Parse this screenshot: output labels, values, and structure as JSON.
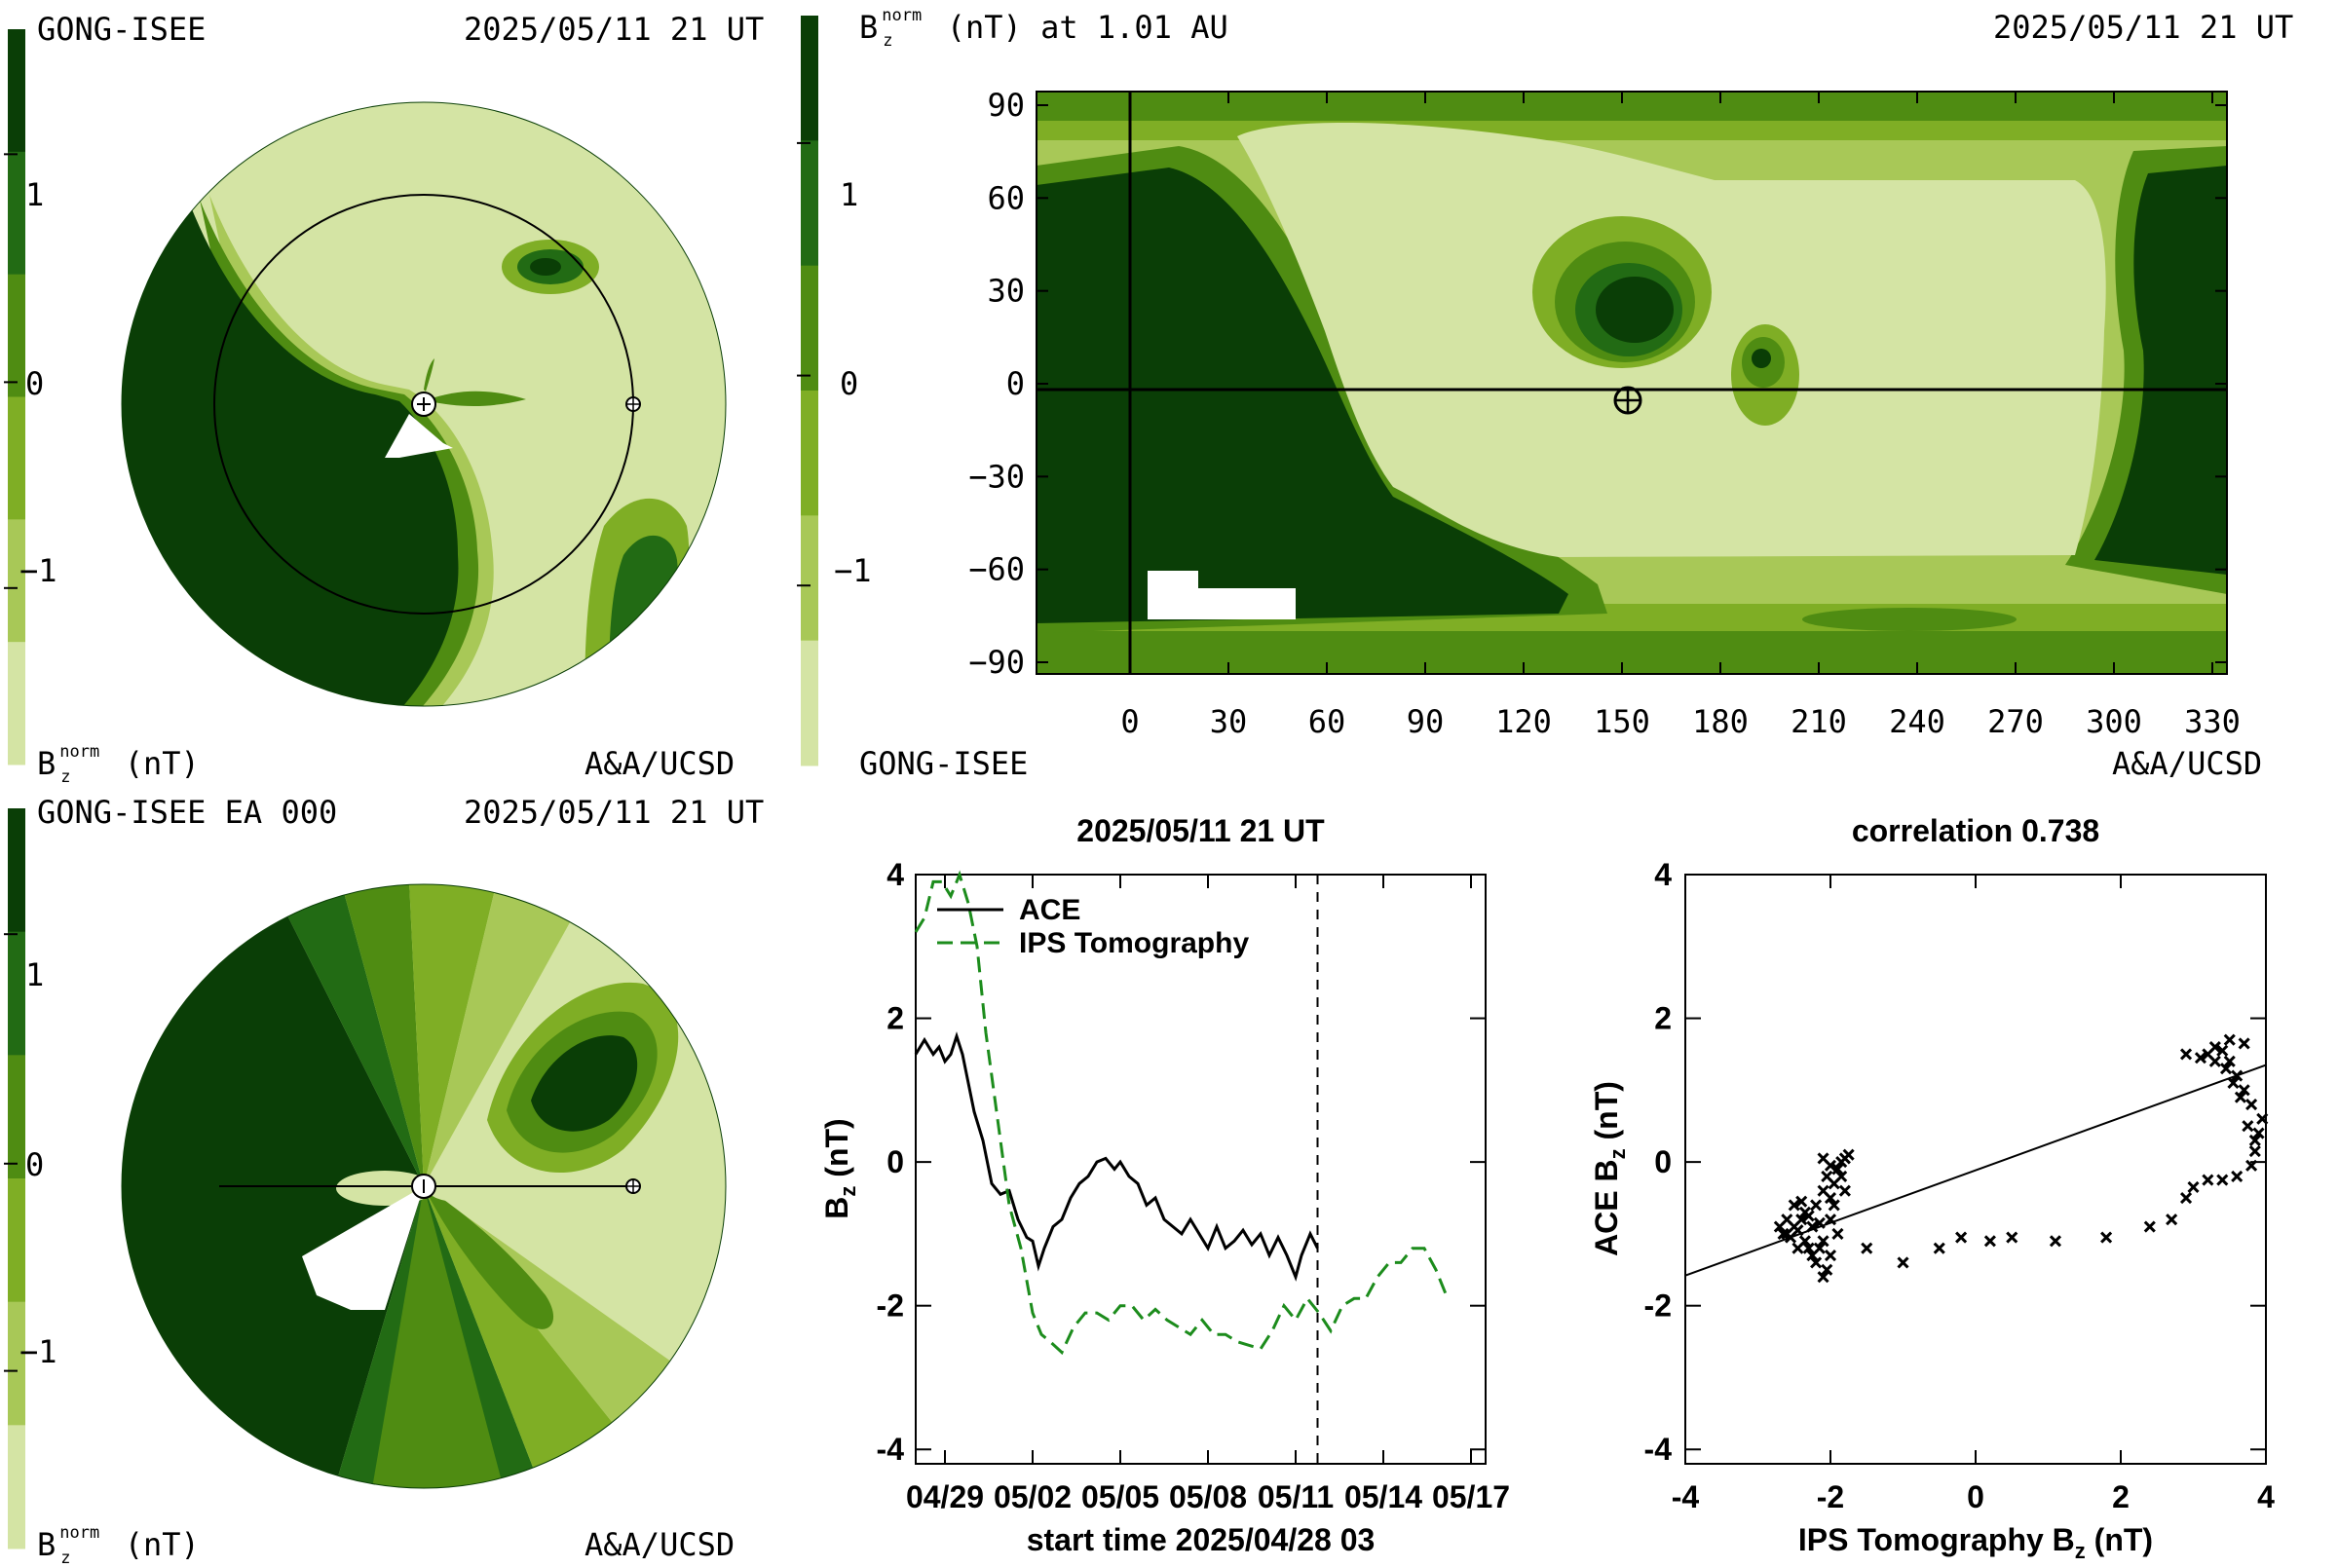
{
  "colors": {
    "level_colors": [
      "#d4e4a4",
      "#a8c857",
      "#7fae25",
      "#4f8c12",
      "#226b14",
      "#0a3e06"
    ],
    "background": "#ffffff",
    "ips_line": "#1c8c1c",
    "ace_line": "#000000"
  },
  "panel_synoptic_map": {
    "left_label": "GONG-ISEE",
    "timestamp": "2025/05/11 21 UT",
    "colorbar_ticks": [
      "1",
      "0",
      "−1"
    ],
    "units_label": "B",
    "units_sup": "norm",
    "units_sub": "z",
    "units_suffix": "(nT)",
    "credit": "A&A/UCSD"
  },
  "panel_map_lonlat": {
    "title_prefix": "B",
    "title_sup": "norm",
    "title_sub": "z",
    "title_suffix": "(nT) at 1.01 AU",
    "timestamp": "2025/05/11 21 UT",
    "colorbar_ticks": [
      "1",
      "0",
      "−1"
    ],
    "y_ticks": [
      "90",
      "60",
      "30",
      "0",
      "−30",
      "−60",
      "−90"
    ],
    "x_ticks": [
      "0",
      "30",
      "60",
      "90",
      "120",
      "150",
      "180",
      "210",
      "240",
      "270",
      "300",
      "330"
    ],
    "left_label": "GONG-ISEE",
    "credit": "A&A/UCSD",
    "earth_symbol": "⊕"
  },
  "panel_meridional": {
    "left_label": "GONG-ISEE EA 000",
    "timestamp": "2025/05/11 21 UT",
    "colorbar_ticks": [
      "1",
      "0",
      "−1"
    ],
    "units_label": "B",
    "units_sup": "norm",
    "units_sub": "z",
    "units_suffix": "(nT)",
    "credit": "A&A/UCSD"
  },
  "chart_data": [
    {
      "type": "line",
      "title": "2025/05/11 21 UT",
      "xlabel": "start time 2025/04/28 03",
      "ylabel_main": "B",
      "ylabel_sub": "z",
      "ylabel_suffix": " (nT)",
      "x_tick_labels": [
        "04/29",
        "05/02",
        "05/05",
        "05/08",
        "05/11",
        "05/14",
        "05/17"
      ],
      "x_tick_days": [
        1.0,
        4.0,
        7.0,
        10.0,
        13.0,
        16.0,
        19.0
      ],
      "xlim_days": [
        0.0,
        19.5
      ],
      "ylim": [
        -4.2,
        4.0
      ],
      "y_ticks": [
        -4,
        -2,
        0,
        2,
        4
      ],
      "current_time_day": 13.75,
      "series": [
        {
          "name": "ACE",
          "style": "solid",
          "x": [
            0.0,
            0.3,
            0.6,
            0.8,
            1.0,
            1.2,
            1.4,
            1.6,
            1.8,
            2.0,
            2.3,
            2.6,
            2.9,
            3.2,
            3.5,
            3.8,
            4.0,
            4.2,
            4.4,
            4.7,
            5.0,
            5.3,
            5.6,
            5.9,
            6.2,
            6.5,
            6.8,
            7.0,
            7.3,
            7.6,
            7.9,
            8.2,
            8.5,
            8.8,
            9.1,
            9.4,
            9.7,
            10.0,
            10.3,
            10.6,
            10.9,
            11.2,
            11.5,
            11.8,
            12.1,
            12.4,
            12.7,
            13.0,
            13.2,
            13.5,
            13.75
          ],
          "y": [
            1.5,
            1.7,
            1.5,
            1.6,
            1.4,
            1.5,
            1.75,
            1.5,
            1.1,
            0.7,
            0.3,
            -0.3,
            -0.45,
            -0.4,
            -0.8,
            -1.05,
            -1.1,
            -1.45,
            -1.2,
            -0.9,
            -0.8,
            -0.5,
            -0.3,
            -0.2,
            0.0,
            0.05,
            -0.1,
            0.0,
            -0.2,
            -0.3,
            -0.6,
            -0.5,
            -0.8,
            -0.9,
            -1.0,
            -0.8,
            -1.0,
            -1.2,
            -0.9,
            -1.2,
            -1.1,
            -0.95,
            -1.15,
            -1.0,
            -1.3,
            -1.05,
            -1.3,
            -1.6,
            -1.3,
            -1.0,
            -1.2
          ]
        },
        {
          "name": "IPS Tomography",
          "style": "dashed",
          "x": [
            0.0,
            0.3,
            0.6,
            0.9,
            1.2,
            1.5,
            1.8,
            2.1,
            2.4,
            2.8,
            3.2,
            3.6,
            4.0,
            4.3,
            4.6,
            5.0,
            5.4,
            5.8,
            6.2,
            6.6,
            7.0,
            7.4,
            7.8,
            8.2,
            8.6,
            9.0,
            9.4,
            9.8,
            10.2,
            10.6,
            11.0,
            11.4,
            11.8,
            12.2,
            12.6,
            13.0,
            13.4,
            13.8,
            14.2,
            14.6,
            15.0,
            15.4,
            15.8,
            16.2,
            16.6,
            17.0,
            17.4,
            17.8,
            18.2
          ],
          "y": [
            3.2,
            3.4,
            3.9,
            3.9,
            3.7,
            4.0,
            3.6,
            3.0,
            1.8,
            0.6,
            -0.6,
            -1.2,
            -2.1,
            -2.4,
            -2.5,
            -2.65,
            -2.3,
            -2.1,
            -2.1,
            -2.2,
            -2.0,
            -2.0,
            -2.2,
            -2.05,
            -2.2,
            -2.3,
            -2.4,
            -2.2,
            -2.4,
            -2.4,
            -2.5,
            -2.55,
            -2.6,
            -2.35,
            -2.0,
            -2.2,
            -1.9,
            -2.1,
            -2.35,
            -2.0,
            -1.9,
            -1.9,
            -1.6,
            -1.4,
            -1.4,
            -1.2,
            -1.2,
            -1.5,
            -1.9
          ]
        }
      ]
    },
    {
      "type": "scatter",
      "title": "correlation 0.738",
      "xlabel_main": "IPS Tomography B",
      "xlabel_sub": "z",
      "xlabel_suffix": " (nT)",
      "ylabel_main": "ACE B",
      "ylabel_sub": "z",
      "ylabel_suffix": " (nT)",
      "xlim": [
        -4,
        4
      ],
      "ylim": [
        -4.2,
        4.0
      ],
      "x_ticks": [
        -4,
        -2,
        0,
        2,
        4
      ],
      "y_ticks": [
        -4,
        -2,
        0,
        2,
        4
      ],
      "fit_line": {
        "x": [
          -4,
          4
        ],
        "y": [
          -1.58,
          1.35
        ]
      },
      "points": [
        [
          -2.5,
          -0.9
        ],
        [
          -2.6,
          -1.0
        ],
        [
          -2.4,
          -0.8
        ],
        [
          -2.3,
          -1.2
        ],
        [
          -2.55,
          -1.05
        ],
        [
          -2.45,
          -0.95
        ],
        [
          -2.35,
          -0.7
        ],
        [
          -2.2,
          -1.4
        ],
        [
          -2.1,
          -1.6
        ],
        [
          -2.15,
          -1.2
        ],
        [
          -2.25,
          -0.9
        ],
        [
          -2.0,
          -0.5
        ],
        [
          -1.95,
          -0.3
        ],
        [
          -1.9,
          -0.1
        ],
        [
          -1.85,
          0.0
        ],
        [
          -1.8,
          0.05
        ],
        [
          -1.75,
          0.1
        ],
        [
          -2.05,
          -0.2
        ],
        [
          -2.1,
          -0.4
        ],
        [
          -2.2,
          -0.6
        ],
        [
          -2.3,
          -0.75
        ],
        [
          -2.4,
          -0.55
        ],
        [
          -2.5,
          -0.6
        ],
        [
          -2.6,
          -0.8
        ],
        [
          -2.65,
          -1.0
        ],
        [
          -2.7,
          -0.9
        ],
        [
          -2.0,
          -0.8
        ],
        [
          -1.9,
          -1.0
        ],
        [
          -2.0,
          -1.3
        ],
        [
          -2.1,
          -1.1
        ],
        [
          -1.95,
          -0.6
        ],
        [
          -2.15,
          -0.85
        ],
        [
          -2.05,
          -1.5
        ],
        [
          -2.25,
          -1.3
        ],
        [
          -2.35,
          -1.1
        ],
        [
          -2.45,
          -1.2
        ],
        [
          -2.0,
          -0.05
        ],
        [
          -1.85,
          -0.2
        ],
        [
          -1.8,
          -0.4
        ],
        [
          -2.1,
          0.05
        ],
        [
          -1.5,
          -1.2
        ],
        [
          -1.0,
          -1.4
        ],
        [
          -0.5,
          -1.2
        ],
        [
          -0.2,
          -1.05
        ],
        [
          0.2,
          -1.1
        ],
        [
          0.5,
          -1.05
        ],
        [
          1.1,
          -1.1
        ],
        [
          1.8,
          -1.05
        ],
        [
          2.4,
          -0.9
        ],
        [
          2.7,
          -0.8
        ],
        [
          2.9,
          -0.5
        ],
        [
          3.0,
          -0.35
        ],
        [
          3.2,
          -0.25
        ],
        [
          3.4,
          -0.25
        ],
        [
          3.6,
          -0.2
        ],
        [
          3.8,
          -0.05
        ],
        [
          3.85,
          0.15
        ],
        [
          3.9,
          0.4
        ],
        [
          3.95,
          0.6
        ],
        [
          3.8,
          0.8
        ],
        [
          3.7,
          1.0
        ],
        [
          3.6,
          1.2
        ],
        [
          3.5,
          1.4
        ],
        [
          3.4,
          1.55
        ],
        [
          3.3,
          1.6
        ],
        [
          3.2,
          1.5
        ],
        [
          3.1,
          1.45
        ],
        [
          2.9,
          1.5
        ],
        [
          3.5,
          1.7
        ],
        [
          3.7,
          1.65
        ],
        [
          3.65,
          0.9
        ],
        [
          3.75,
          0.5
        ],
        [
          3.55,
          1.1
        ],
        [
          3.3,
          1.4
        ],
        [
          3.45,
          1.3
        ],
        [
          3.85,
          0.3
        ]
      ]
    }
  ]
}
